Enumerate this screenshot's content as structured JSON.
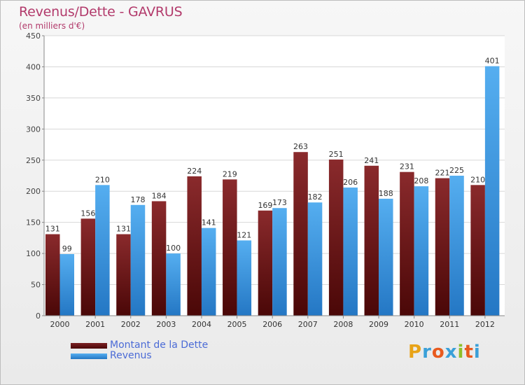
{
  "chart_data": {
    "type": "bar",
    "title": "Revenus/Dette - GAVRUS",
    "subtitle": "(en milliers d'€)",
    "categories": [
      "2000",
      "2001",
      "2002",
      "2003",
      "2004",
      "2005",
      "2006",
      "2007",
      "2008",
      "2009",
      "2010",
      "2011",
      "2012"
    ],
    "series": [
      {
        "name": "Montant de la Dette",
        "values": [
          131,
          156,
          131,
          184,
          224,
          219,
          169,
          263,
          251,
          241,
          231,
          221,
          210
        ],
        "color": "#7a1f22"
      },
      {
        "name": "Revenus",
        "values": [
          99,
          210,
          178,
          100,
          141,
          121,
          173,
          182,
          206,
          188,
          208,
          225,
          401
        ],
        "color": "#3d9ee6"
      }
    ],
    "ylim": [
      0,
      450
    ],
    "yticks": [
      0,
      50,
      100,
      150,
      200,
      250,
      300,
      350,
      400,
      450
    ],
    "grid": true,
    "legend_position": "bottom-left",
    "data_labels": true
  },
  "brand": {
    "letters": [
      "P",
      "r",
      "o",
      "x",
      "i",
      "t",
      "i"
    ],
    "colors": [
      "#e8a317",
      "#3aa0d8",
      "#e85a1e",
      "#3aa0d8",
      "#8fbf2a",
      "#e85a1e",
      "#3aa0d8"
    ]
  }
}
